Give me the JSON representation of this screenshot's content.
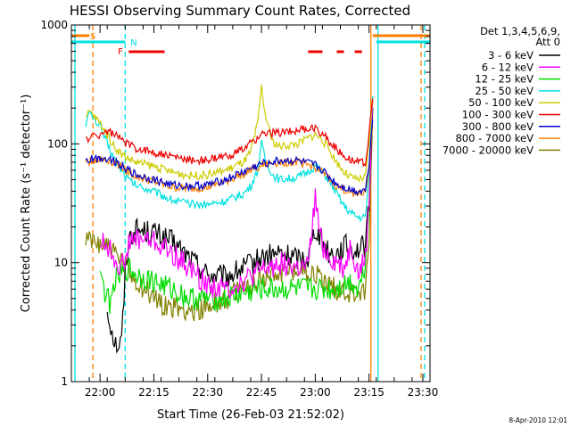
{
  "chart_data": {
    "type": "line",
    "title": "HESSI Observing Summary Count Rates, Corrected",
    "xlabel": "Start Time (26-Feb-03 21:52:02)",
    "ylabel": "Corrected Count Rate (s⁻¹ detector⁻¹)",
    "yscale": "log",
    "ylim": [
      1,
      1000
    ],
    "xlim": [
      "21:52",
      "23:32"
    ],
    "y_ticks": [
      "1",
      "10",
      "100",
      "1000"
    ],
    "x_ticks": [
      "22:00",
      "22:15",
      "22:30",
      "22:45",
      "23:00",
      "23:15",
      "23:30"
    ],
    "x_tick_minutes": [
      480,
      495,
      510,
      525,
      540,
      555,
      570
    ],
    "x_minutes_range": [
      472,
      572
    ],
    "legend_title": [
      "Det 1,3,4,5,6,9,",
      "Att 0"
    ],
    "legend_position": "right",
    "date_stamp": "8-Apr-2010 12:01",
    "flags": [
      {
        "label": "S",
        "color": "#ff7f00",
        "segments": [
          [
            472,
            477
          ],
          [
            556,
            572
          ]
        ]
      },
      {
        "label": "N",
        "color": "#00e0e0",
        "segments": [
          [
            472,
            487
          ],
          [
            557,
            572
          ]
        ]
      },
      {
        "label": "F",
        "color": "#ee0000",
        "segments": [
          [
            488,
            498
          ],
          [
            538,
            542
          ],
          [
            546,
            548
          ],
          [
            551,
            553
          ]
        ]
      }
    ],
    "vlines": [
      {
        "minute": 473,
        "color": "#00e0e0",
        "dash": false
      },
      {
        "minute": 478,
        "color": "#ff7f00",
        "dash": true
      },
      {
        "minute": 487,
        "color": "#00e0e0",
        "dash": true
      },
      {
        "minute": 555.5,
        "color": "#ff7f00",
        "dash": false
      },
      {
        "minute": 557.5,
        "color": "#00e0e0",
        "dash": false
      },
      {
        "minute": 569.5,
        "color": "#ff7f00",
        "dash": true
      },
      {
        "minute": 570.5,
        "color": "#00e0e0",
        "dash": true
      }
    ],
    "series": [
      {
        "name": "3 - 6 keV",
        "color": "#000000",
        "x": [
          482,
          483,
          484,
          485,
          486,
          487,
          488,
          490,
          495,
          500,
          505,
          510,
          515,
          520,
          525,
          530,
          535,
          538,
          540,
          542,
          544,
          546,
          548,
          550,
          552,
          554,
          555,
          556
        ],
        "y": [
          4,
          3,
          2.2,
          2,
          2.2,
          8,
          16,
          19,
          18,
          15,
          11,
          8,
          7.5,
          9,
          11,
          12,
          11,
          11,
          20,
          15,
          12,
          12,
          14,
          13,
          13,
          14,
          30,
          200
        ]
      },
      {
        "name": "6 - 12 keV",
        "color": "#ff00ff",
        "x": [
          480,
          482,
          484,
          486,
          488,
          490,
          495,
          500,
          505,
          510,
          515,
          520,
          525,
          530,
          535,
          538,
          540,
          541,
          542,
          544,
          546,
          548,
          550,
          552,
          554,
          555,
          556
        ],
        "y": [
          15,
          14,
          11,
          9,
          14,
          16,
          15,
          12,
          9,
          6.5,
          6,
          7,
          8.5,
          10,
          9,
          9,
          35,
          20,
          14,
          11,
          10,
          9,
          14,
          8,
          11,
          30,
          230
        ]
      },
      {
        "name": "12 - 25 keV",
        "color": "#00dd00",
        "x": [
          480,
          481,
          482,
          483,
          484,
          486,
          488,
          490,
          495,
          500,
          505,
          510,
          515,
          520,
          525,
          530,
          535,
          540,
          545,
          550,
          552,
          554,
          555,
          556
        ],
        "y": [
          10,
          6,
          5,
          4.5,
          7,
          8,
          9,
          8,
          7,
          6,
          5,
          5,
          5,
          5.5,
          6,
          6,
          6,
          6,
          6,
          7,
          6,
          10,
          40,
          250
        ]
      },
      {
        "name": "25 - 50 keV",
        "color": "#00e0e0",
        "x": [
          476,
          477,
          478,
          480,
          482,
          484,
          486,
          488,
          490,
          495,
          500,
          505,
          510,
          515,
          520,
          522,
          524,
          525,
          526,
          528,
          530,
          535,
          538,
          540,
          542,
          544,
          546,
          548,
          550,
          552,
          554,
          555,
          556
        ],
        "y": [
          150,
          180,
          170,
          140,
          100,
          75,
          60,
          50,
          45,
          40,
          34,
          31,
          31,
          33,
          38,
          44,
          60,
          100,
          75,
          55,
          50,
          52,
          58,
          65,
          58,
          48,
          38,
          30,
          26,
          24,
          24,
          60,
          250
        ]
      },
      {
        "name": "50 - 100 keV",
        "color": "#cccc00",
        "x": [
          476,
          477,
          478,
          480,
          482,
          484,
          486,
          488,
          490,
          495,
          500,
          505,
          510,
          515,
          520,
          522,
          524,
          525,
          526,
          528,
          530,
          535,
          538,
          540,
          542,
          544,
          546,
          548,
          550,
          552,
          554,
          555,
          556
        ],
        "y": [
          160,
          190,
          175,
          150,
          120,
          95,
          82,
          75,
          70,
          65,
          58,
          54,
          55,
          60,
          70,
          85,
          150,
          300,
          180,
          105,
          95,
          100,
          112,
          120,
          108,
          88,
          70,
          58,
          52,
          50,
          52,
          100,
          230
        ]
      },
      {
        "name": "100 - 300 keV",
        "color": "#ee0000",
        "x": [
          476,
          477,
          478,
          480,
          482,
          484,
          486,
          488,
          490,
          495,
          500,
          505,
          510,
          515,
          520,
          525,
          530,
          535,
          540,
          542,
          544,
          546,
          548,
          550,
          552,
          554,
          555,
          556
        ],
        "y": [
          110,
          112,
          115,
          120,
          128,
          120,
          108,
          98,
          92,
          85,
          78,
          73,
          73,
          78,
          90,
          120,
          125,
          130,
          135,
          122,
          105,
          90,
          80,
          74,
          70,
          70,
          120,
          240
        ]
      },
      {
        "name": "300 - 800 keV",
        "color": "#0000cc",
        "x": [
          476,
          477,
          478,
          480,
          482,
          484,
          486,
          488,
          490,
          495,
          500,
          505,
          510,
          515,
          520,
          525,
          530,
          535,
          540,
          542,
          544,
          546,
          548,
          550,
          552,
          554,
          555,
          556
        ],
        "y": [
          72,
          73,
          75,
          76,
          76,
          72,
          66,
          60,
          55,
          50,
          45,
          44,
          45,
          50,
          58,
          68,
          72,
          72,
          66,
          60,
          52,
          46,
          43,
          41,
          40,
          41,
          70,
          160
        ]
      },
      {
        "name": "800 - 7000 keV",
        "color": "#ff7f00",
        "x": [
          476,
          477,
          478,
          480,
          482,
          484,
          486,
          488,
          490,
          495,
          500,
          505,
          510,
          515,
          520,
          525,
          530,
          535,
          540,
          542,
          544,
          546,
          548,
          550,
          552,
          554,
          555,
          556
        ],
        "y": [
          70,
          71,
          73,
          74,
          73,
          70,
          64,
          58,
          53,
          48,
          43,
          42,
          43,
          48,
          56,
          66,
          70,
          70,
          64,
          58,
          50,
          44,
          41,
          39,
          38,
          39,
          65,
          150
        ]
      },
      {
        "name": "7000 - 20000 keV",
        "color": "#808000",
        "x": [
          476,
          477,
          478,
          480,
          482,
          484,
          486,
          488,
          490,
          495,
          500,
          505,
          510,
          515,
          520,
          525,
          530,
          535,
          540,
          542,
          544,
          546,
          548,
          550,
          552,
          554,
          555,
          556
        ],
        "y": [
          15,
          15,
          15,
          15,
          14,
          12,
          10,
          8.5,
          7,
          5,
          4.2,
          4,
          4.2,
          5,
          6,
          7.5,
          8.5,
          9,
          8,
          7,
          6.5,
          6,
          5.8,
          5.5,
          5.5,
          5.5,
          15,
          200
        ]
      }
    ]
  }
}
